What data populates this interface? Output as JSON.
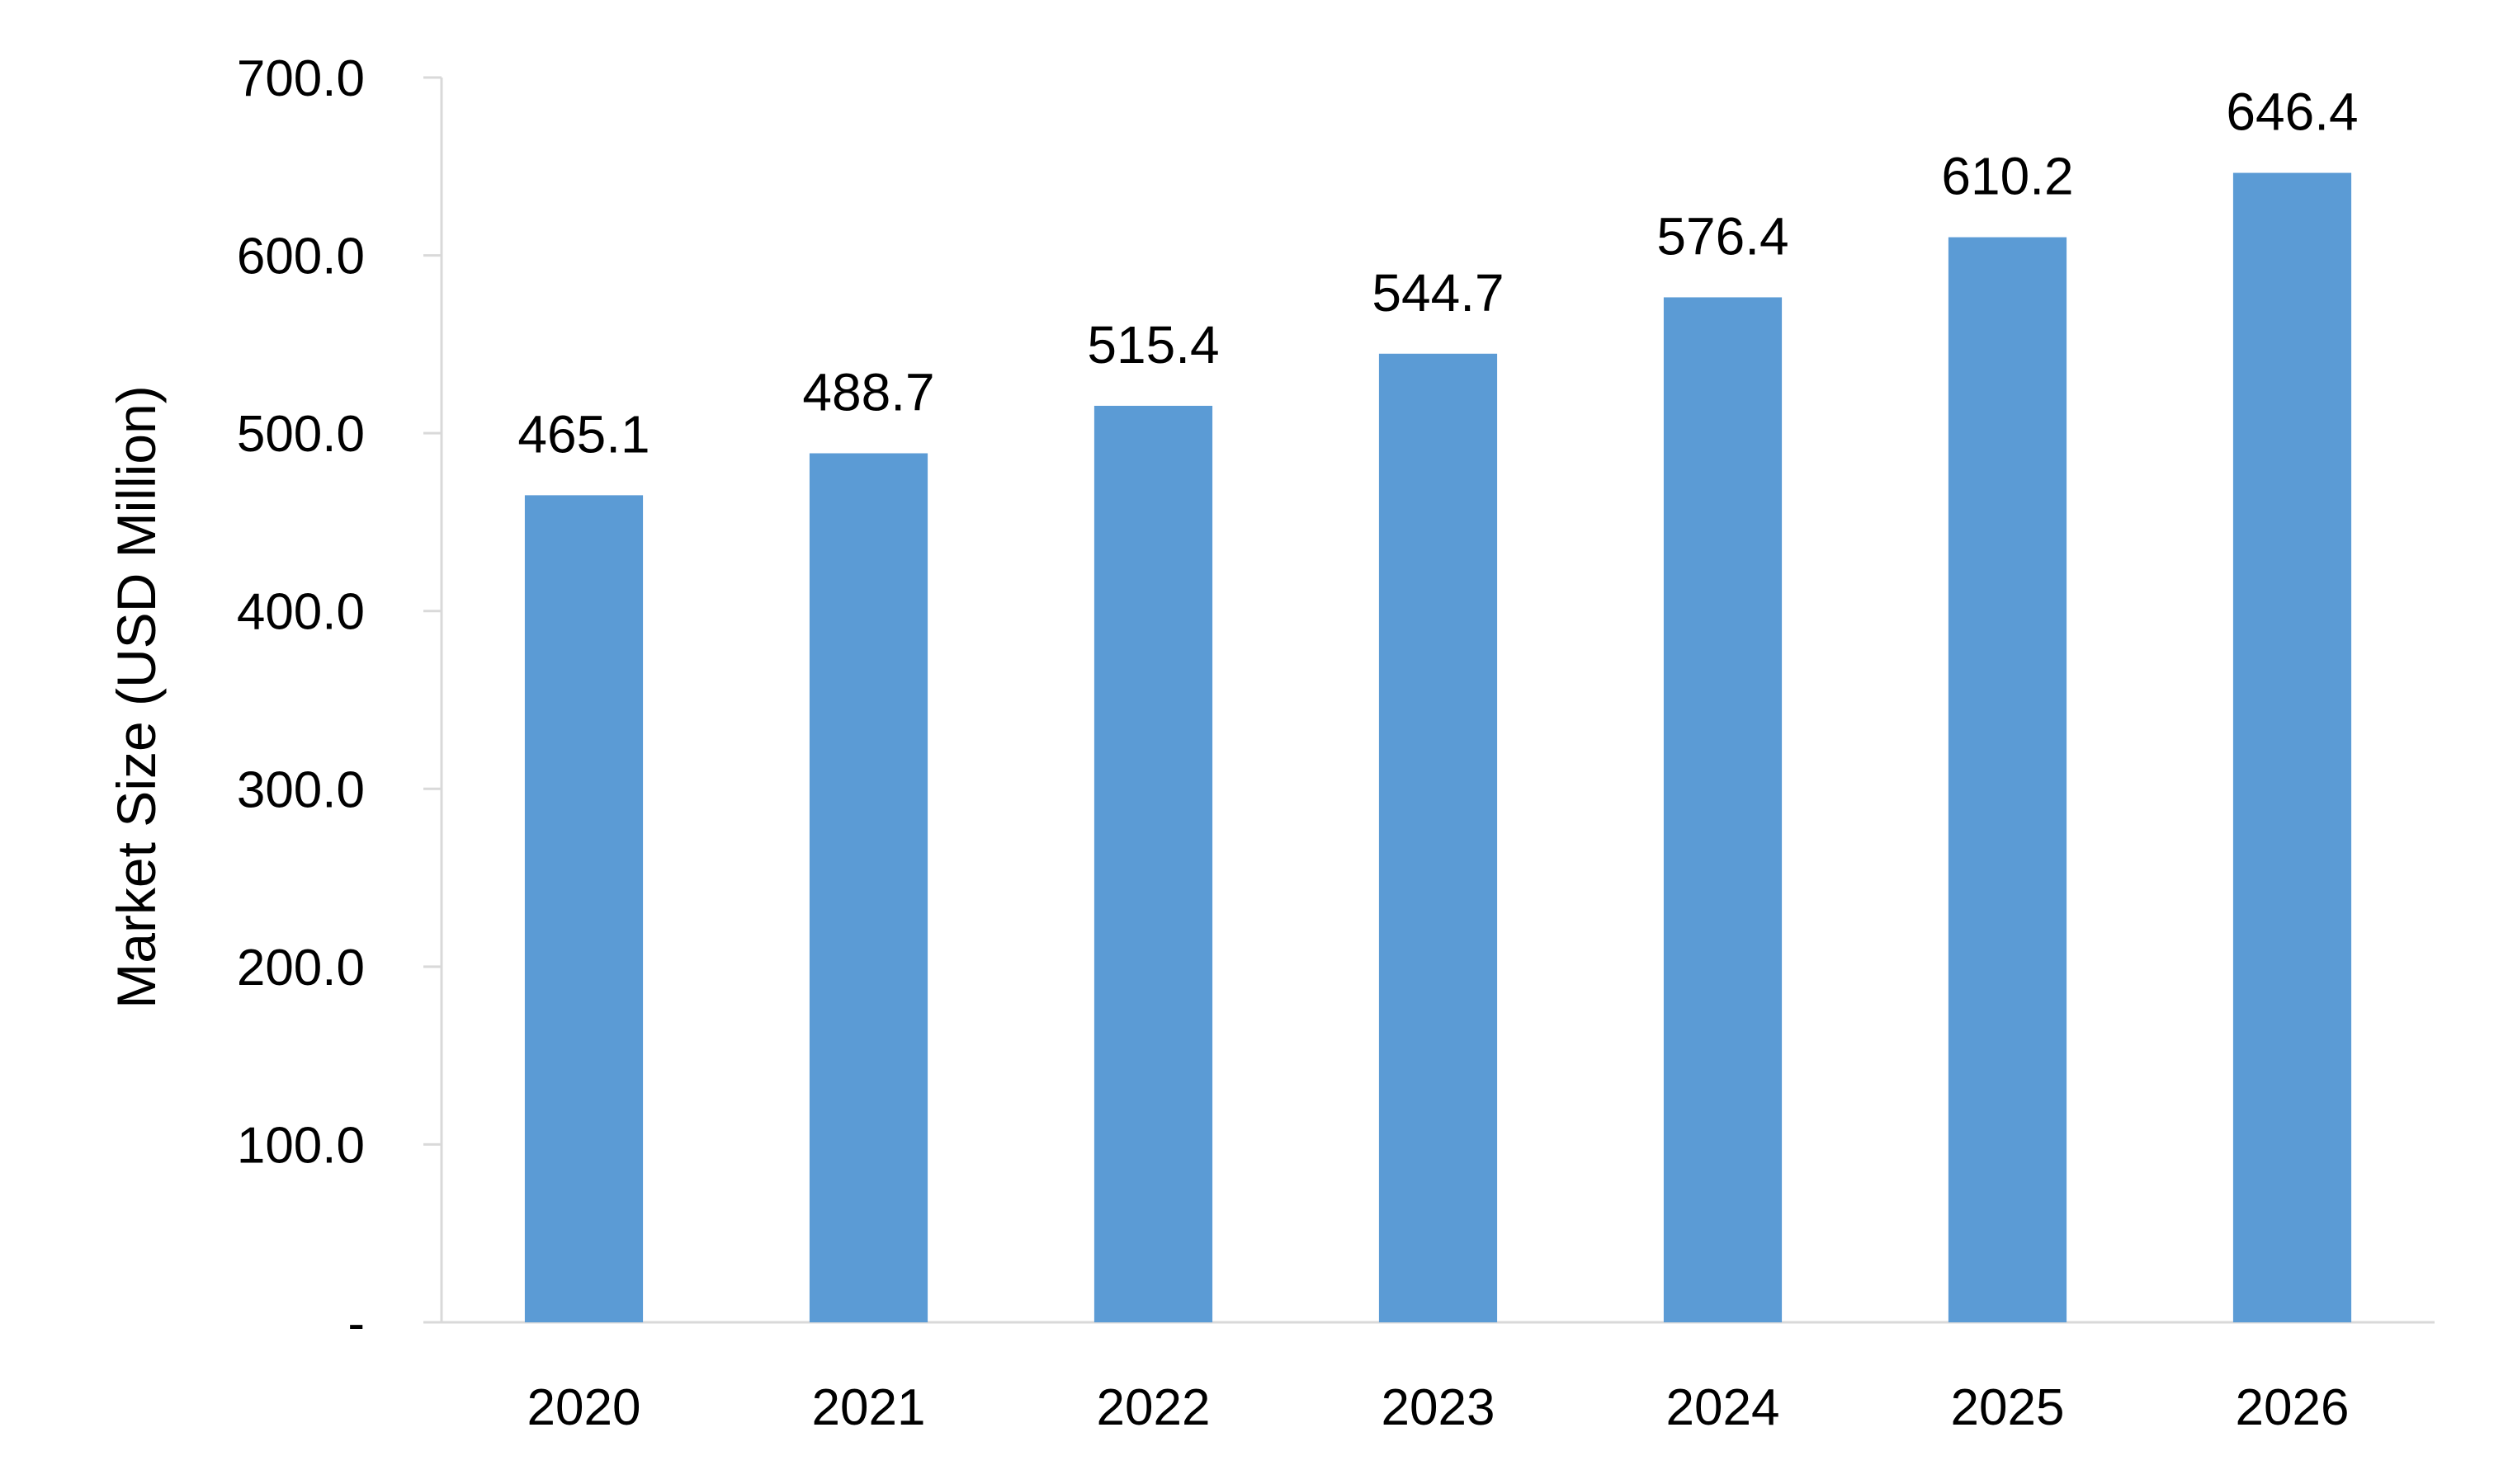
{
  "chart_data": {
    "type": "bar",
    "title": "",
    "xlabel": "",
    "ylabel": "Market Size (USD Million)",
    "categories": [
      "2020",
      "2021",
      "2022",
      "2023",
      "2024",
      "2025",
      "2026"
    ],
    "values": [
      465.1,
      488.7,
      515.4,
      544.7,
      576.4,
      610.2,
      646.4
    ],
    "value_labels": [
      "465.1",
      "488.7",
      "515.4",
      "544.7",
      "576.4",
      "610.2",
      "646.4"
    ],
    "ylim": [
      0,
      700
    ],
    "yticks": [
      0,
      100,
      200,
      300,
      400,
      500,
      600,
      700
    ],
    "ytick_labels": [
      "-",
      "100.0",
      "200.0",
      "300.0",
      "400.0",
      "500.0",
      "600.0",
      "700.0"
    ],
    "grid": false,
    "legend": "none",
    "colors": {
      "bar": "#5b9bd5",
      "axis": "#d9d9d9",
      "text": "#000000"
    }
  }
}
